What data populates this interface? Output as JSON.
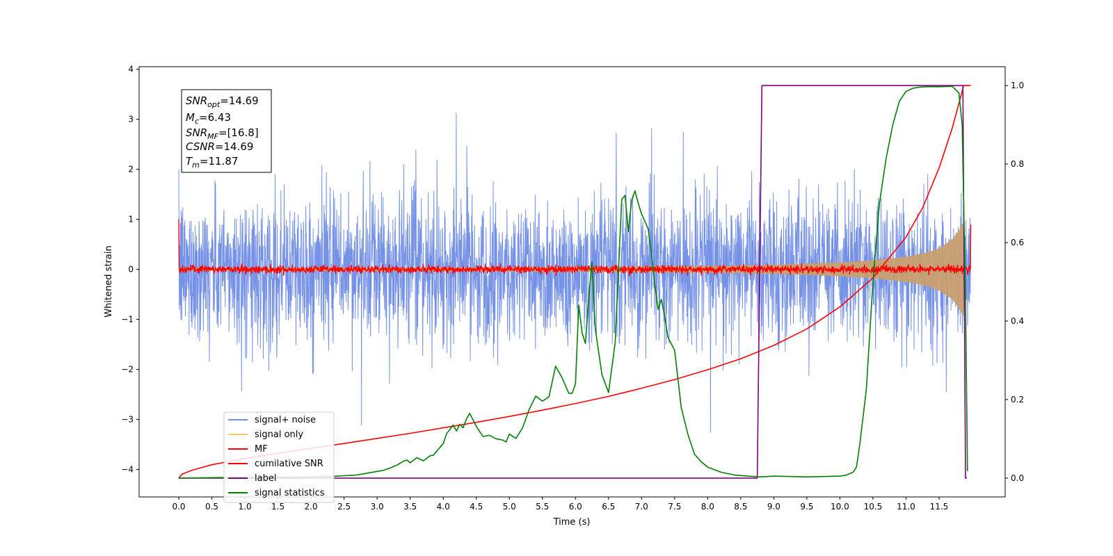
{
  "chart_data": {
    "type": "line",
    "title": "",
    "xlabel": "Time (s)",
    "ylabel": "Whitened strain",
    "y2label": "",
    "xlim": [
      -0.6,
      12.5
    ],
    "ylim": [
      -4.55,
      4.05
    ],
    "y2lim": [
      -0.048,
      1.048
    ],
    "x_ticks": [
      0.0,
      0.5,
      1.0,
      1.5,
      2.0,
      2.5,
      3.0,
      3.5,
      4.0,
      4.5,
      5.0,
      5.5,
      6.0,
      6.5,
      7.0,
      7.5,
      8.0,
      8.5,
      9.0,
      9.5,
      10.0,
      10.5,
      11.0,
      11.5
    ],
    "x_tick_labels": [
      "0.0",
      "0.5",
      "1.0",
      "1.5",
      "2.0",
      "2.5",
      "3.0",
      "3.5",
      "4.0",
      "4.5",
      "5.0",
      "5.5",
      "6.0",
      "6.5",
      "7.0",
      "7.5",
      "8.0",
      "8.5",
      "9.0",
      "9.5",
      "10.0",
      "10.5",
      "11.0",
      "11.5"
    ],
    "y_ticks": [
      4,
      3,
      2,
      1,
      0,
      -1,
      -2,
      -3,
      -4
    ],
    "y_tick_labels": [
      "4",
      "3",
      "2",
      "1",
      "0",
      "−1",
      "−2",
      "−3",
      "−4"
    ],
    "y2_ticks": [
      1.0,
      0.8,
      0.6,
      0.4,
      0.2,
      0.0
    ],
    "y2_tick_labels": [
      "1.0",
      "0.8",
      "0.6",
      "0.4",
      "0.2",
      "0.0"
    ],
    "legend_position": "lower-left",
    "grid": false,
    "series": [
      {
        "name": "signal+ noise",
        "axis": "left",
        "color": "#6f8ce6",
        "kind": "noise",
        "x_range": [
          0.0,
          11.98
        ],
        "typical_amplitude": 1.5,
        "extreme_range": [
          -4.15,
          3.66
        ]
      },
      {
        "name": "signal only",
        "axis": "left",
        "color": "#f5c86a",
        "kind": "chirp-envelope",
        "envelope_x": [
          0.0,
          4.0,
          6.0,
          8.0,
          9.0,
          10.0,
          10.5,
          11.0,
          11.3,
          11.5,
          11.7,
          11.8,
          11.87,
          11.9
        ],
        "envelope_y": [
          0.03,
          0.04,
          0.05,
          0.07,
          0.09,
          0.14,
          0.18,
          0.25,
          0.33,
          0.42,
          0.6,
          0.78,
          0.95,
          0.0
        ]
      },
      {
        "name": "MF",
        "axis": "left",
        "color": "#ff0000",
        "kind": "noise",
        "x_range": [
          0.0,
          11.98
        ],
        "typical_amplitude": 0.08,
        "start_spike": 1.0,
        "end_spike": 0.9
      },
      {
        "name": "cumilative SNR",
        "axis": "right",
        "color": "#ff0000",
        "x": [
          0.0,
          0.05,
          0.2,
          0.5,
          1.0,
          1.5,
          2.0,
          2.5,
          3.0,
          3.5,
          4.0,
          4.5,
          5.0,
          5.5,
          6.0,
          6.5,
          7.0,
          7.5,
          8.0,
          8.5,
          9.0,
          9.5,
          10.0,
          10.5,
          11.0,
          11.25,
          11.5,
          11.7,
          11.8,
          11.85,
          11.87,
          11.9,
          11.98
        ],
        "y": [
          0.0,
          0.01,
          0.02,
          0.034,
          0.05,
          0.063,
          0.076,
          0.088,
          0.101,
          0.114,
          0.128,
          0.142,
          0.157,
          0.173,
          0.19,
          0.208,
          0.229,
          0.251,
          0.276,
          0.304,
          0.338,
          0.38,
          0.436,
          0.51,
          0.614,
          0.688,
          0.79,
          0.892,
          0.955,
          0.985,
          1.0,
          1.0,
          1.0
        ]
      },
      {
        "name": "label",
        "axis": "right",
        "color": "#800080",
        "x": [
          0.0,
          8.75,
          8.82,
          11.82,
          11.86,
          11.9,
          11.92
        ],
        "y": [
          0.0,
          0.0,
          1.0,
          1.0,
          1.0,
          0.0,
          0.0
        ]
      },
      {
        "name": "signal statistics",
        "axis": "right",
        "color": "#008000",
        "x": [
          0.0,
          0.5,
          1.0,
          1.5,
          2.0,
          2.3,
          2.5,
          2.7,
          2.8,
          3.0,
          3.1,
          3.2,
          3.3,
          3.4,
          3.45,
          3.5,
          3.6,
          3.7,
          3.8,
          3.85,
          3.95,
          4.0,
          4.05,
          4.1,
          4.15,
          4.2,
          4.25,
          4.3,
          4.35,
          4.4,
          4.5,
          4.6,
          4.7,
          4.8,
          4.9,
          4.95,
          5.0,
          5.1,
          5.2,
          5.3,
          5.4,
          5.5,
          5.6,
          5.7,
          5.75,
          5.8,
          5.9,
          5.95,
          6.0,
          6.05,
          6.1,
          6.15,
          6.2,
          6.25,
          6.3,
          6.4,
          6.5,
          6.6,
          6.7,
          6.75,
          6.8,
          6.85,
          6.9,
          6.95,
          7.0,
          7.1,
          7.15,
          7.2,
          7.25,
          7.3,
          7.35,
          7.4,
          7.5,
          7.6,
          7.7,
          7.8,
          7.9,
          8.0,
          8.2,
          8.4,
          8.6,
          8.8,
          9.0,
          9.5,
          10.0,
          10.1,
          10.2,
          10.25,
          10.3,
          10.4,
          10.5,
          10.6,
          10.7,
          10.8,
          10.9,
          11.0,
          11.1,
          11.2,
          11.3,
          11.5,
          11.7,
          11.8,
          11.85,
          11.9,
          11.93
        ],
        "y": [
          0.0,
          0.001,
          0.002,
          0.002,
          0.003,
          0.004,
          0.006,
          0.008,
          0.011,
          0.017,
          0.02,
          0.026,
          0.033,
          0.043,
          0.046,
          0.039,
          0.052,
          0.044,
          0.057,
          0.058,
          0.078,
          0.088,
          0.113,
          0.124,
          0.135,
          0.12,
          0.137,
          0.128,
          0.15,
          0.165,
          0.132,
          0.106,
          0.109,
          0.1,
          0.097,
          0.092,
          0.112,
          0.101,
          0.128,
          0.175,
          0.209,
          0.196,
          0.207,
          0.285,
          0.27,
          0.255,
          0.216,
          0.216,
          0.24,
          0.441,
          0.37,
          0.343,
          0.46,
          0.55,
          0.38,
          0.264,
          0.218,
          0.344,
          0.71,
          0.72,
          0.628,
          0.707,
          0.732,
          0.7,
          0.673,
          0.635,
          0.573,
          0.493,
          0.43,
          0.455,
          0.411,
          0.358,
          0.326,
          0.18,
          0.112,
          0.061,
          0.042,
          0.028,
          0.015,
          0.008,
          0.005,
          0.003,
          0.005,
          0.003,
          0.005,
          0.008,
          0.015,
          0.028,
          0.085,
          0.226,
          0.5,
          0.702,
          0.815,
          0.9,
          0.96,
          0.985,
          0.993,
          0.996,
          0.997,
          0.997,
          0.998,
          0.981,
          0.9,
          0.45,
          0.018
        ]
      }
    ],
    "stats_box": {
      "snr_opt_label": "SNR",
      "snr_opt_sub": "opt",
      "snr_opt_value": "=14.69",
      "mc_label": "M",
      "mc_sub": "c",
      "mc_value": "=6.43",
      "snr_mf_label": "SNR",
      "snr_mf_sub": "MF",
      "snr_mf_value": "=[16.8]",
      "csnr_label": "CSNR",
      "csnr_value": "=14.69",
      "tm_label": "T",
      "tm_sub": "m",
      "tm_value": "=11.87"
    }
  }
}
